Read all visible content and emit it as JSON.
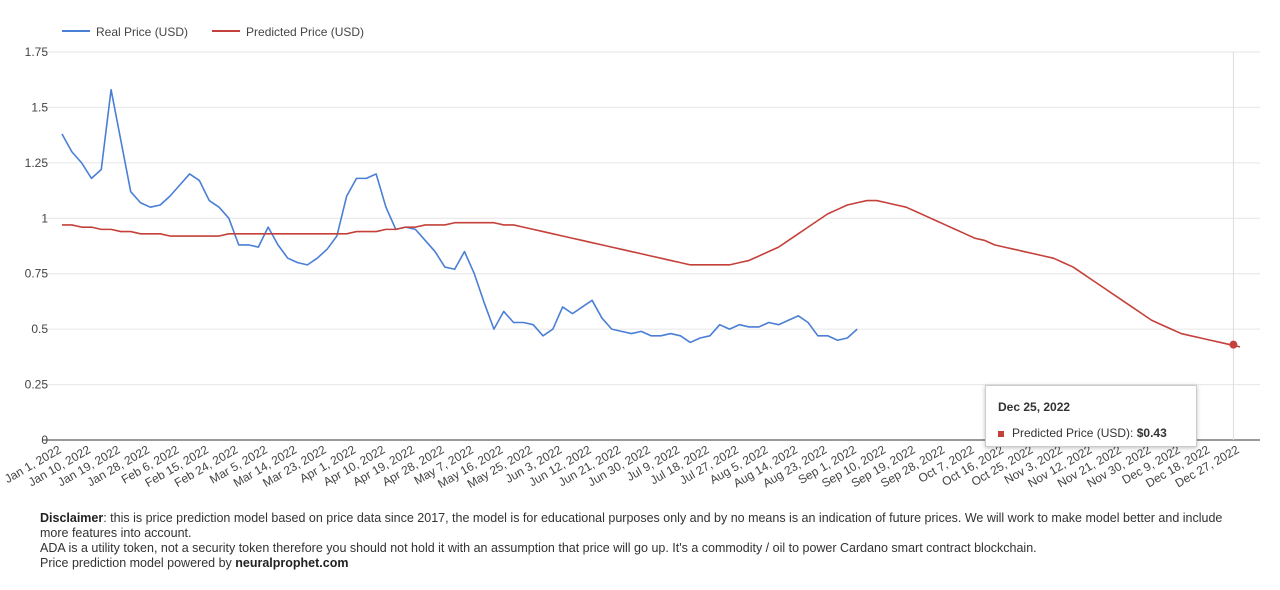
{
  "chart_data": {
    "type": "line",
    "categories": [
      "Jan 1, 2022",
      null,
      null,
      "Jan 10, 2022",
      null,
      null,
      "Jan 19, 2022",
      null,
      null,
      "Jan 28, 2022",
      null,
      null,
      "Feb 6, 2022",
      null,
      null,
      "Feb 15, 2022",
      null,
      null,
      "Feb 24, 2022",
      null,
      null,
      "Mar 5, 2022",
      null,
      null,
      "Mar 14, 2022",
      null,
      null,
      "Mar 23, 2022",
      null,
      null,
      "Apr 1, 2022",
      null,
      null,
      "Apr 10, 2022",
      null,
      null,
      "Apr 19, 2022",
      null,
      null,
      "Apr 28, 2022",
      null,
      null,
      "May 7, 2022",
      null,
      null,
      "May 16, 2022",
      null,
      null,
      "May 25, 2022",
      null,
      null,
      "Jun 3, 2022",
      null,
      null,
      "Jun 12, 2022",
      null,
      null,
      "Jun 21, 2022",
      null,
      null,
      "Jun 30, 2022",
      null,
      null,
      "Jul 9, 2022",
      null,
      null,
      "Jul 18, 2022",
      null,
      null,
      "Jul 27, 2022",
      null,
      null,
      "Aug 5, 2022",
      null,
      null,
      "Aug 14, 2022",
      null,
      null,
      "Aug 23, 2022",
      null,
      null,
      "Sep 1, 2022",
      null,
      null,
      "Sep 10, 2022",
      null,
      null,
      "Sep 19, 2022",
      null,
      null,
      "Sep 28, 2022",
      null,
      null,
      "Oct 7, 2022",
      null,
      null,
      "Oct 16, 2022",
      null,
      null,
      "Oct 25, 2022",
      null,
      null,
      "Nov 3, 2022",
      null,
      null,
      "Nov 12, 2022",
      null,
      null,
      "Nov 21, 2022",
      null,
      null,
      "Nov 30, 2022",
      null,
      null,
      "Dec 9, 2022",
      null,
      null,
      "Dec 18, 2022",
      null,
      null,
      "Dec 27, 2022"
    ],
    "series": [
      {
        "name": "Real Price (USD)",
        "color": "#4a7fd6",
        "values": [
          1.38,
          1.3,
          1.25,
          1.18,
          1.22,
          1.58,
          1.35,
          1.12,
          1.07,
          1.05,
          1.06,
          1.1,
          1.15,
          1.2,
          1.17,
          1.08,
          1.05,
          1.0,
          0.88,
          0.88,
          0.87,
          0.96,
          0.88,
          0.82,
          0.8,
          0.79,
          0.82,
          0.86,
          0.92,
          1.1,
          1.18,
          1.18,
          1.2,
          1.05,
          0.95,
          0.96,
          0.95,
          0.9,
          0.85,
          0.78,
          0.77,
          0.85,
          0.75,
          0.62,
          0.5,
          0.58,
          0.53,
          0.53,
          0.52,
          0.47,
          0.5,
          0.6,
          0.57,
          0.6,
          0.63,
          0.55,
          0.5,
          0.49,
          0.48,
          0.49,
          0.47,
          0.47,
          0.48,
          0.47,
          0.44,
          0.46,
          0.47,
          0.52,
          0.5,
          0.52,
          0.51,
          0.51,
          0.53,
          0.52,
          0.54,
          0.56,
          0.53,
          0.47,
          0.47,
          0.45,
          0.46,
          0.5,
          null,
          null,
          null,
          null,
          null,
          null,
          null,
          null,
          null,
          null,
          null,
          null,
          null,
          null,
          null,
          null,
          null,
          null,
          null,
          null,
          null,
          null,
          null,
          null,
          null,
          null,
          null,
          null,
          null,
          null,
          null,
          null,
          null,
          null,
          null,
          null,
          null,
          null,
          null
        ]
      },
      {
        "name": "Predicted Price (USD)",
        "color": "#c5403a",
        "values": [
          0.97,
          0.97,
          0.96,
          0.96,
          0.95,
          0.95,
          0.94,
          0.94,
          0.93,
          0.93,
          0.93,
          0.92,
          0.92,
          0.92,
          0.92,
          0.92,
          0.92,
          0.93,
          0.93,
          0.93,
          0.93,
          0.93,
          0.93,
          0.93,
          0.93,
          0.93,
          0.93,
          0.93,
          0.93,
          0.93,
          0.94,
          0.94,
          0.94,
          0.95,
          0.95,
          0.96,
          0.96,
          0.97,
          0.97,
          0.97,
          0.98,
          0.98,
          0.98,
          0.98,
          0.98,
          0.97,
          0.97,
          0.96,
          0.95,
          0.94,
          0.93,
          0.92,
          0.91,
          0.9,
          0.89,
          0.88,
          0.87,
          0.86,
          0.85,
          0.84,
          0.83,
          0.82,
          0.81,
          0.8,
          0.79,
          0.79,
          0.79,
          0.79,
          0.79,
          0.8,
          0.81,
          0.83,
          0.85,
          0.87,
          0.9,
          0.93,
          0.96,
          0.99,
          1.02,
          1.04,
          1.06,
          1.07,
          1.08,
          1.08,
          1.07,
          1.06,
          1.05,
          1.03,
          1.01,
          0.99,
          0.97,
          0.95,
          0.93,
          0.91,
          0.9,
          0.88,
          0.87,
          0.86,
          0.85,
          0.84,
          0.83,
          0.82,
          0.8,
          0.78,
          0.75,
          0.72,
          0.69,
          0.66,
          0.63,
          0.6,
          0.57,
          0.54,
          0.52,
          0.5,
          0.48,
          0.47,
          0.46,
          0.45,
          0.44,
          0.43,
          0.42
        ]
      }
    ],
    "ylim": [
      0,
      1.75
    ],
    "yticks": [
      0,
      0.25,
      0.5,
      0.75,
      1,
      1.25,
      1.5,
      1.75
    ],
    "grid": true,
    "legend": "top",
    "tooltip": {
      "date": "Dec 25, 2022",
      "series": "Predicted Price (USD):",
      "value": 0.43,
      "value_label": "$0.43"
    }
  },
  "disclaimer": {
    "label": "Disclaimer",
    "text": ": this is price prediction model based on price data since 2017, the model is for educational purposes only and by no means is an indication of future prices. We will work to make model better and include more features into account.",
    "line2": "ADA is a utility token, not a security token therefore you should not hold it with an assumption that price will go up. It's a commodity / oil to power Cardano smart contract blockchain.",
    "line3": "Price prediction model powered by ",
    "link": "neuralprophet.com"
  }
}
